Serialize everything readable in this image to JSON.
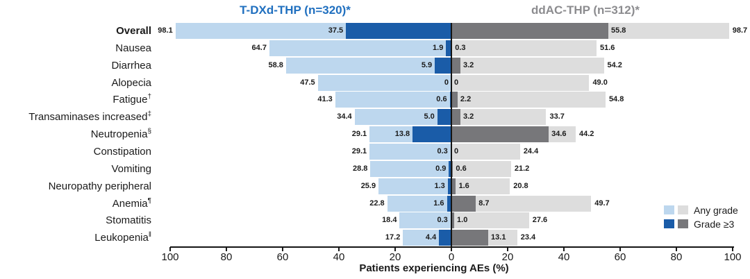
{
  "header": {
    "left_group": "T-DXd-THP (n=320)*",
    "right_group": "ddAC-THP (n=312)*"
  },
  "legend": {
    "any_grade": "Any grade",
    "grade_ge3": "Grade ≥3"
  },
  "axis": {
    "label": "Patients experiencing AEs (%)",
    "tick_values": [
      -100,
      -80,
      -60,
      -40,
      -20,
      0,
      20,
      40,
      60,
      80,
      100
    ],
    "tick_step": 20
  },
  "colors": {
    "header_blue": "#1F6FBF",
    "header_gray": "#8C8C8F",
    "light_blue": "#BDD7EE",
    "dark_blue": "#1A5CA8",
    "light_gray": "#DDDDDD",
    "dark_gray": "#77777A",
    "axis_black": "#141414"
  },
  "chart_data": {
    "type": "bar",
    "variant": "diverging-tornado",
    "title_left": "T-DXd-THP (n=320)*",
    "title_right": "ddAC-THP (n=312)*",
    "xlabel": "Patients experiencing AEs (%)",
    "xlim": [
      -100,
      100
    ],
    "grid": false,
    "legend_position": "right-bottom",
    "legend_entries": [
      "Any grade",
      "Grade ≥3"
    ],
    "categories": [
      {
        "label": "Overall",
        "sup": "",
        "bold": true
      },
      {
        "label": "Nausea",
        "sup": "",
        "bold": false
      },
      {
        "label": "Diarrhea",
        "sup": "",
        "bold": false
      },
      {
        "label": "Alopecia",
        "sup": "",
        "bold": false
      },
      {
        "label": "Fatigue",
        "sup": "†",
        "bold": false
      },
      {
        "label": "Transaminases increased",
        "sup": "‡",
        "bold": false
      },
      {
        "label": "Neutropenia",
        "sup": "§",
        "bold": false
      },
      {
        "label": "Constipation",
        "sup": "",
        "bold": false
      },
      {
        "label": "Vomiting",
        "sup": "",
        "bold": false
      },
      {
        "label": "Neuropathy peripheral",
        "sup": "",
        "bold": false
      },
      {
        "label": "Anemia",
        "sup": "¶",
        "bold": false
      },
      {
        "label": "Stomatitis",
        "sup": "",
        "bold": false
      },
      {
        "label": "Leukopenia",
        "sup": "‖",
        "bold": false
      }
    ],
    "series": [
      {
        "name": "T-DXd-THP Any grade",
        "side": "left",
        "grade": "any",
        "color_key": "light_blue",
        "values": [
          "98.1",
          "64.7",
          "58.8",
          "47.5",
          "41.3",
          "34.4",
          "29.1",
          "29.1",
          "28.8",
          "25.9",
          "22.8",
          "18.4",
          "17.2"
        ]
      },
      {
        "name": "T-DXd-THP Grade ≥3",
        "side": "left",
        "grade": "ge3",
        "color_key": "dark_blue",
        "values": [
          "37.5",
          "1.9",
          "5.9",
          "0",
          "0.6",
          "5.0",
          "13.8",
          "0.3",
          "0.9",
          "1.3",
          "1.6",
          "0.3",
          "4.4"
        ]
      },
      {
        "name": "ddAC-THP Grade ≥3",
        "side": "right",
        "grade": "ge3",
        "color_key": "dark_gray",
        "values": [
          "55.8",
          "0.3",
          "3.2",
          "0",
          "2.2",
          "3.2",
          "34.6",
          "0",
          "0.6",
          "1.6",
          "8.7",
          "1.0",
          "13.1"
        ]
      },
      {
        "name": "ddAC-THP Any grade",
        "side": "right",
        "grade": "any",
        "color_key": "light_gray",
        "values": [
          "98.7",
          "51.6",
          "54.2",
          "49.0",
          "54.8",
          "33.7",
          "44.2",
          "24.4",
          "21.2",
          "20.8",
          "49.7",
          "27.6",
          "23.4"
        ]
      }
    ]
  }
}
